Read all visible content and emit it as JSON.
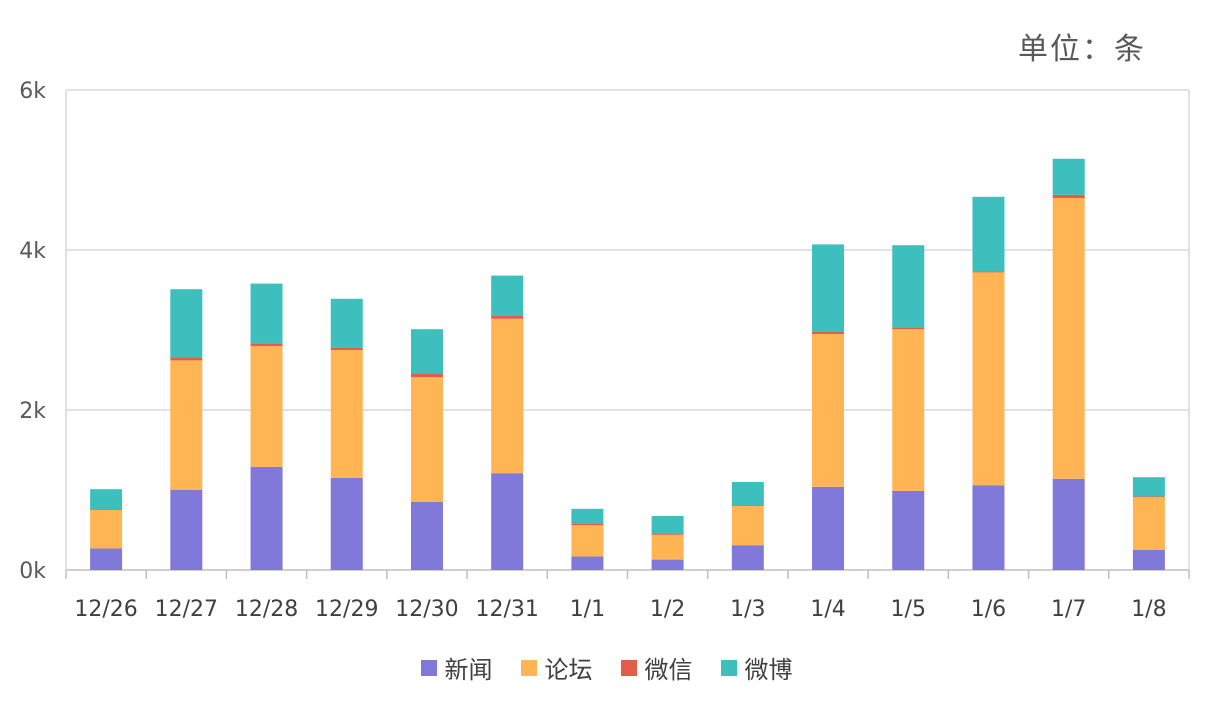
{
  "unit_label": "单位：条",
  "colors": {
    "news": "#8079D9",
    "forum": "#FFB554",
    "wechat": "#E05E4B",
    "weibo": "#3DBFBD"
  },
  "chart_data": {
    "type": "bar",
    "stacked": true,
    "categories": [
      "12/26",
      "12/27",
      "12/28",
      "12/29",
      "12/30",
      "12/31",
      "1/1",
      "1/2",
      "1/3",
      "1/4",
      "1/5",
      "1/6",
      "1/7",
      "1/8"
    ],
    "series": [
      {
        "name": "新闻",
        "key": "news",
        "values": [
          270,
          1000,
          1290,
          1150,
          850,
          1210,
          170,
          130,
          310,
          1040,
          990,
          1060,
          1140,
          250
        ]
      },
      {
        "name": "论坛",
        "key": "forum",
        "values": [
          480,
          1620,
          1510,
          1600,
          1560,
          1930,
          390,
          310,
          490,
          1910,
          2020,
          2660,
          3510,
          660
        ]
      },
      {
        "name": "微信",
        "key": "wechat",
        "values": [
          10,
          40,
          30,
          30,
          40,
          40,
          15,
          15,
          10,
          30,
          20,
          15,
          40,
          10
        ]
      },
      {
        "name": "微博",
        "key": "weibo",
        "values": [
          250,
          850,
          750,
          610,
          560,
          500,
          190,
          220,
          290,
          1090,
          1030,
          930,
          450,
          240
        ]
      }
    ],
    "ylim": [
      0,
      6000
    ],
    "yticks": [
      0,
      2000,
      4000,
      6000
    ],
    "ytick_labels": [
      "0k",
      "2k",
      "4k",
      "6k"
    ],
    "grid": true,
    "legend_position": "bottom"
  }
}
